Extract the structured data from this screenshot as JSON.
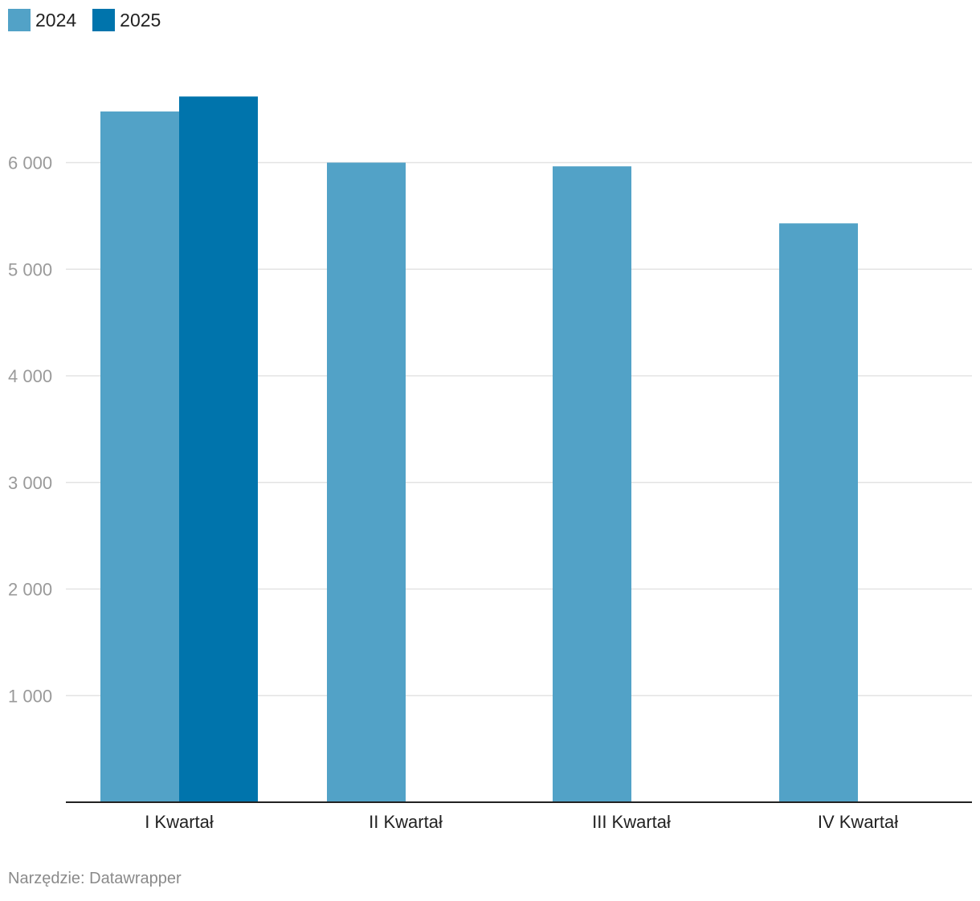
{
  "chart_data": {
    "type": "bar",
    "categories": [
      "I Kwartał",
      "II Kwartał",
      "III Kwartał",
      "IV Kwartał"
    ],
    "series": [
      {
        "name": "2024",
        "color": "#52a2c7",
        "values": [
          6480,
          6000,
          5965,
          5430
        ]
      },
      {
        "name": "2025",
        "color": "#0074ac",
        "values": [
          6620,
          null,
          null,
          null
        ]
      }
    ],
    "ylim": [
      0,
      7000
    ],
    "yticks": [
      1000,
      2000,
      3000,
      4000,
      5000,
      6000
    ],
    "ytick_labels": [
      "1 000",
      "2 000",
      "3 000",
      "4 000",
      "5 000",
      "6 000"
    ],
    "grid": true,
    "legend_position": "top-left",
    "title": "",
    "xlabel": "",
    "ylabel": ""
  },
  "footer": {
    "source": "Narzędzie: Datawrapper"
  }
}
